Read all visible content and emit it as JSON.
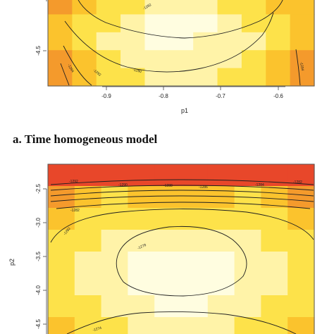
{
  "chart_data": [
    {
      "type": "heatmap",
      "title": "",
      "xlabel": "p1",
      "ylabel": "",
      "x_ticks": [
        "-0.9",
        "-0.8",
        "-0.7",
        "-0.6"
      ],
      "y_ticks": [
        "-4.5"
      ],
      "xlim": [
        -0.975,
        -0.525
      ],
      "ylim": [
        -4.85,
        -3.95
      ],
      "contour_labels": [
        "-1292",
        "-1290",
        "-1292",
        "-1294",
        "-1294"
      ],
      "colors": [
        "#fffde0",
        "#fff3a8",
        "#fde24a",
        "#fbc32d",
        "#f49a2c",
        "#e8472a"
      ],
      "grid": false,
      "legend": "none"
    },
    {
      "type": "heatmap",
      "title": "",
      "xlabel": "",
      "ylabel": "p2",
      "x_ticks": [],
      "y_ticks": [
        "-2.5",
        "-3.0",
        "-3.5",
        "-4.0",
        "-4.5"
      ],
      "ylim": [
        -4.6,
        -2.3
      ],
      "contour_labels": [
        "-1292",
        "-1290",
        "-1288",
        "-1286",
        "-1284",
        "-1282",
        "-1282",
        "-1278",
        "-1282",
        "-1274"
      ],
      "colors": [
        "#fffde0",
        "#fff3a8",
        "#fde24a",
        "#fbc32d",
        "#f49a2c",
        "#e8472a"
      ],
      "grid": false,
      "legend": "none"
    }
  ],
  "caption": "a. Time homogeneous model"
}
